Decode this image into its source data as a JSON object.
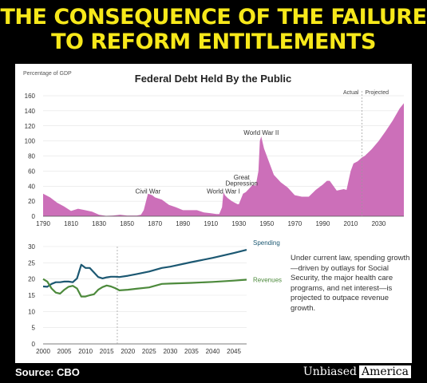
{
  "headline": {
    "line1": "THE CONSEQUENCE OF THE FAILURE",
    "line2": "TO REFORM ENTITLEMENTS"
  },
  "footer": {
    "source": "Source: CBO",
    "brand_a": "Unbiased",
    "brand_b": "America"
  },
  "colors": {
    "headline": "#f7e81a",
    "debt_fill": "#cc6fb9",
    "spending": "#1c5872",
    "revenues": "#4d8a3c"
  },
  "chart_data": [
    {
      "type": "area",
      "title": "Federal Debt Held By the Public",
      "ylabel": "Percentage of GDP",
      "xlim": [
        1790,
        2048
      ],
      "ylim": [
        0,
        160
      ],
      "x_ticks": [
        1790,
        1810,
        1830,
        1850,
        1870,
        1890,
        1910,
        1930,
        1950,
        1970,
        1990,
        2010,
        2030
      ],
      "y_ticks": [
        0,
        20,
        40,
        60,
        80,
        100,
        120,
        140,
        160
      ],
      "actual_label": "Actual",
      "projected_label": "Projected",
      "projection_start": 2018,
      "annotations": [
        {
          "text": "Civil War",
          "x": 1865,
          "y": 30
        },
        {
          "text": "World War I",
          "x": 1919,
          "y": 30
        },
        {
          "text": "Great",
          "x": 1932,
          "y": 49
        },
        {
          "text": "Depression",
          "x": 1932,
          "y": 41
        },
        {
          "text": "World War II",
          "x": 1946,
          "y": 108
        }
      ],
      "series": [
        {
          "x": [
            1790,
            1795,
            1800,
            1805,
            1810,
            1815,
            1820,
            1825,
            1830,
            1835,
            1840,
            1845,
            1850,
            1855,
            1857,
            1860,
            1862,
            1865,
            1868,
            1870,
            1875,
            1880,
            1885,
            1890,
            1895,
            1900,
            1905,
            1910,
            1914,
            1916,
            1918,
            1919,
            1920,
            1922,
            1925,
            1929,
            1930,
            1933,
            1935,
            1938,
            1940,
            1942,
            1944,
            1945,
            1946,
            1948,
            1950,
            1955,
            1960,
            1965,
            1970,
            1975,
            1980,
            1985,
            1990,
            1993,
            1995,
            2000,
            2005,
            2007,
            2009,
            2010,
            2012,
            2015,
            2018,
            2020,
            2025,
            2030,
            2035,
            2040,
            2045,
            2048
          ],
          "values": [
            30,
            25,
            18,
            13,
            7,
            10,
            8,
            6,
            2,
            0.5,
            1,
            2,
            1,
            1,
            1,
            2,
            8,
            30,
            28,
            25,
            22,
            15,
            12,
            8,
            8,
            8,
            5,
            4,
            3,
            3,
            12,
            32,
            28,
            24,
            20,
            16,
            16,
            30,
            32,
            38,
            42,
            40,
            60,
            100,
            106,
            90,
            80,
            55,
            45,
            38,
            28,
            26,
            26,
            35,
            42,
            47,
            47,
            34,
            36,
            35,
            52,
            60,
            70,
            73,
            78,
            80,
            89,
            100,
            113,
            127,
            143,
            150
          ]
        }
      ]
    },
    {
      "type": "line",
      "xlim": [
        2000,
        2048
      ],
      "ylim": [
        0,
        30
      ],
      "x_ticks": [
        2000,
        2005,
        2010,
        2015,
        2020,
        2025,
        2030,
        2035,
        2040,
        2045
      ],
      "y_ticks": [
        0,
        5,
        10,
        15,
        20,
        25,
        30
      ],
      "projection_start": 2017.5,
      "note": "Under current law, spending growth—driven by outlays for Social Security, the major health care programs, and net interest—is projected to outpace revenue growth.",
      "series": [
        {
          "name": "Spending",
          "x": [
            2000,
            2001,
            2002,
            2003,
            2004,
            2005,
            2006,
            2007,
            2008,
            2009,
            2010,
            2011,
            2012,
            2013,
            2014,
            2015,
            2016,
            2017,
            2018,
            2020,
            2022,
            2025,
            2028,
            2030,
            2035,
            2040,
            2045,
            2048
          ],
          "values": [
            17.7,
            17.6,
            18.5,
            19.0,
            19.0,
            19.2,
            19.2,
            19.0,
            20.2,
            24.4,
            23.4,
            23.4,
            22.0,
            20.6,
            20.2,
            20.5,
            20.7,
            20.7,
            20.6,
            21.0,
            21.5,
            22.3,
            23.4,
            23.8,
            25.2,
            26.5,
            28.0,
            29.0
          ]
        },
        {
          "name": "Revenues",
          "x": [
            2000,
            2001,
            2002,
            2003,
            2004,
            2005,
            2006,
            2007,
            2008,
            2009,
            2010,
            2011,
            2012,
            2013,
            2014,
            2015,
            2016,
            2017,
            2018,
            2020,
            2022,
            2025,
            2028,
            2030,
            2035,
            2040,
            2045,
            2048
          ],
          "values": [
            20.0,
            19.2,
            17.1,
            15.8,
            15.5,
            16.7,
            17.6,
            17.9,
            17.1,
            14.6,
            14.6,
            15.0,
            15.3,
            16.7,
            17.5,
            18.0,
            17.7,
            17.2,
            16.5,
            16.7,
            17.0,
            17.4,
            18.5,
            18.6,
            18.8,
            19.1,
            19.5,
            19.8
          ]
        }
      ]
    }
  ]
}
